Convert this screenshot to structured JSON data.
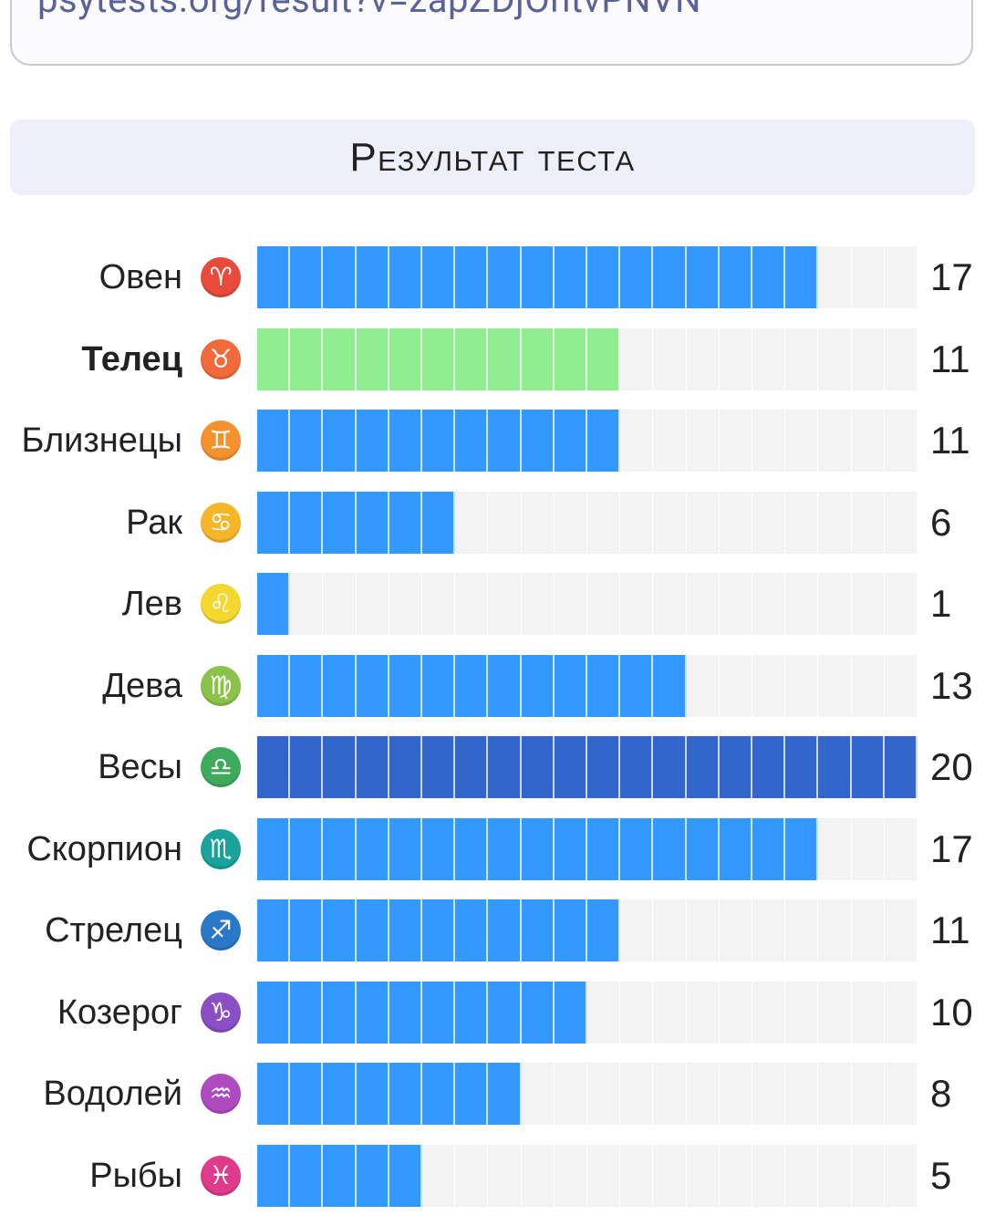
{
  "url": "psytests.org/result?v=zapZDjOntvPNVN",
  "title": "Результат теста",
  "max_value": 20,
  "colors": {
    "bar": "#3399ff",
    "bar_highlight": "#90ee90",
    "bar_max": "#3366cc",
    "bar_bg": "#f3f3f3"
  },
  "rows": [
    {
      "name": "Овен",
      "icon": "aries-icon",
      "glyph": "♈",
      "icon_color": "#e84a3c",
      "value": "17",
      "bold": false,
      "style": "normal"
    },
    {
      "name": "Телец",
      "icon": "taurus-icon",
      "glyph": "♉",
      "icon_color": "#f26a3a",
      "value": "11",
      "bold": true,
      "style": "highlight"
    },
    {
      "name": "Близнецы",
      "icon": "gemini-icon",
      "glyph": "♊",
      "icon_color": "#f5912f",
      "value": "11",
      "bold": false,
      "style": "normal"
    },
    {
      "name": "Рак",
      "icon": "cancer-icon",
      "glyph": "♋",
      "icon_color": "#f7b52a",
      "value": "6",
      "bold": false,
      "style": "normal"
    },
    {
      "name": "Лев",
      "icon": "leo-icon",
      "glyph": "♌",
      "icon_color": "#f4d82f",
      "value": "1",
      "bold": false,
      "style": "normal"
    },
    {
      "name": "Дева",
      "icon": "virgo-icon",
      "glyph": "♍",
      "icon_color": "#8ac24a",
      "value": "13",
      "bold": false,
      "style": "normal"
    },
    {
      "name": "Весы",
      "icon": "libra-icon",
      "glyph": "♎",
      "icon_color": "#3eaa5c",
      "value": "20",
      "bold": false,
      "style": "max"
    },
    {
      "name": "Скорпион",
      "icon": "scorpio-icon",
      "glyph": "♏",
      "icon_color": "#1aa39a",
      "value": "17",
      "bold": false,
      "style": "normal"
    },
    {
      "name": "Стрелец",
      "icon": "sagittarius-icon",
      "glyph": "♐",
      "icon_color": "#2a78c8",
      "value": "11",
      "bold": false,
      "style": "normal"
    },
    {
      "name": "Козерог",
      "icon": "capricorn-icon",
      "glyph": "♑",
      "icon_color": "#8a4fc4",
      "value": "10",
      "bold": false,
      "style": "normal"
    },
    {
      "name": "Водолей",
      "icon": "aquarius-icon",
      "glyph": "♒",
      "icon_color": "#b04ac0",
      "value": "8",
      "bold": false,
      "style": "normal"
    },
    {
      "name": "Рыбы",
      "icon": "pisces-icon",
      "glyph": "♓",
      "icon_color": "#e03a8a",
      "value": "5",
      "bold": false,
      "style": "normal"
    }
  ]
}
